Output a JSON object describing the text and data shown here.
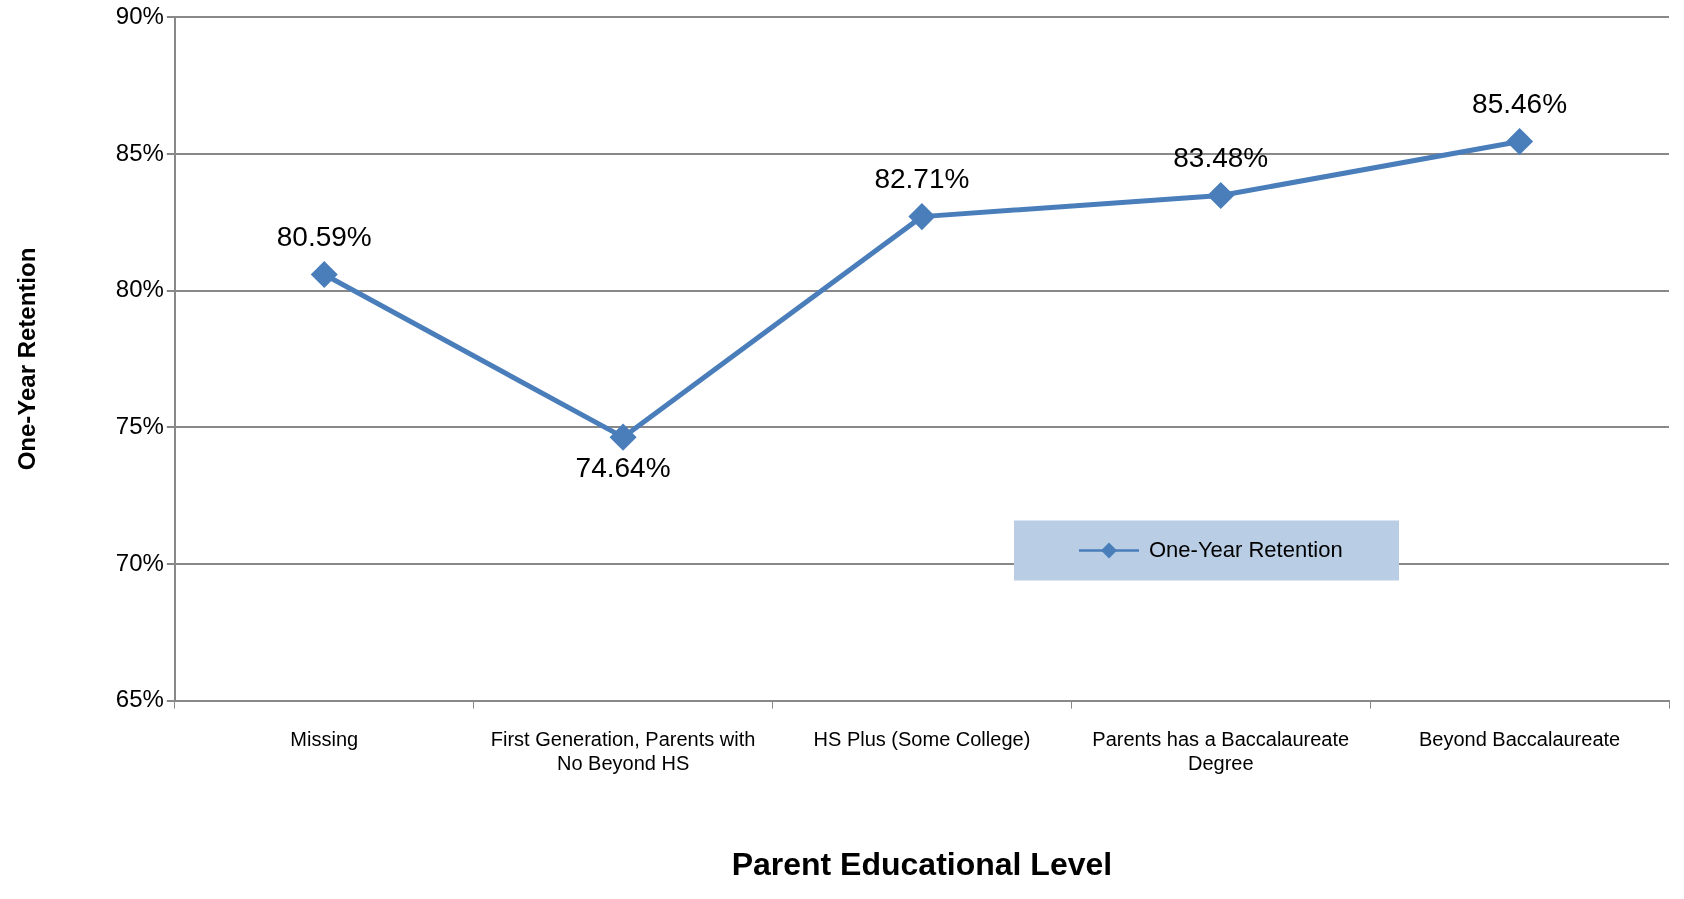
{
  "chart_data": {
    "type": "line",
    "xlabel": "Parent Educational Level",
    "ylabel": "One-Year Retention",
    "categories": [
      "Missing",
      "First Generation, Parents with No Beyond HS",
      "HS Plus (Some College)",
      "Parents has a Baccalaureate Degree",
      "Beyond Baccalaureate"
    ],
    "series": [
      {
        "name": "One-Year Retention",
        "color": "#4a7ebb",
        "values": [
          80.59,
          74.64,
          82.71,
          83.48,
          85.46
        ],
        "value_labels": [
          "80.59%",
          "74.64%",
          "82.71%",
          "83.48%",
          "85.46%"
        ]
      }
    ],
    "ylim": [
      65,
      90
    ],
    "yticks": [
      {
        "value": 65,
        "label": "65%"
      },
      {
        "value": 70,
        "label": "70%"
      },
      {
        "value": 75,
        "label": "75%"
      },
      {
        "value": 80,
        "label": "80%"
      },
      {
        "value": 85,
        "label": "85%"
      },
      {
        "value": 90,
        "label": "90%"
      }
    ],
    "grid": "y",
    "legend": "bottom right",
    "marker": "diamond",
    "line_style": "solid"
  }
}
